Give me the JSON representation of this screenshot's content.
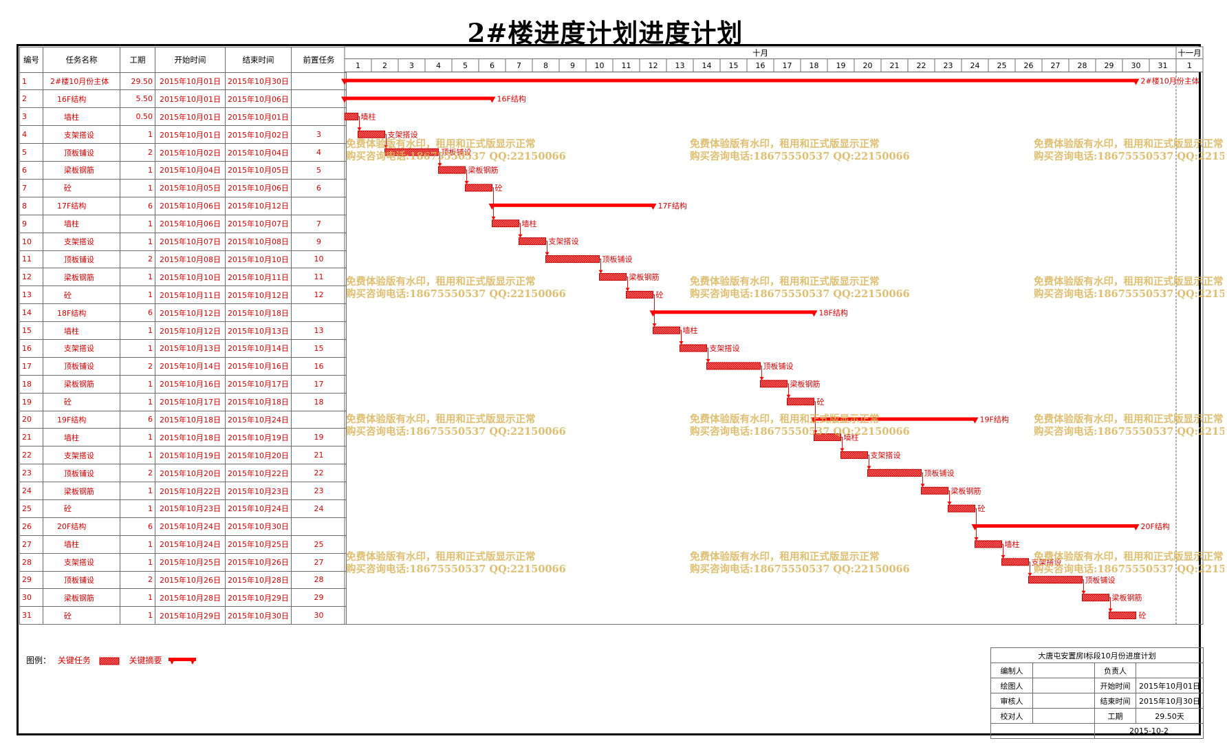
{
  "title": "2#楼进度计划进度计划",
  "columns": [
    "编号",
    "任务名称",
    "工期",
    "开始时间",
    "结束时间",
    "前置任务"
  ],
  "tasks": [
    {
      "id": "1",
      "name": "2#楼10月份主体",
      "level": 0,
      "duration": "29.50",
      "start": "2015年10月01日",
      "end": "2015年10月30日",
      "pred": "",
      "s": 0,
      "e": 29.5,
      "summary": true
    },
    {
      "id": "2",
      "name": "16F结构",
      "level": 1,
      "duration": "5.50",
      "start": "2015年10月01日",
      "end": "2015年10月06日",
      "pred": "",
      "s": 0,
      "e": 5.5,
      "summary": true
    },
    {
      "id": "3",
      "name": "墙柱",
      "level": 2,
      "duration": "0.50",
      "start": "2015年10月01日",
      "end": "2015年10月01日",
      "pred": "",
      "s": 0,
      "e": 0.5,
      "summary": false
    },
    {
      "id": "4",
      "name": "支架搭设",
      "level": 2,
      "duration": "1",
      "start": "2015年10月01日",
      "end": "2015年10月02日",
      "pred": "3",
      "s": 0.5,
      "e": 1.5,
      "summary": false
    },
    {
      "id": "5",
      "name": "顶板铺设",
      "level": 2,
      "duration": "2",
      "start": "2015年10月02日",
      "end": "2015年10月04日",
      "pred": "4",
      "s": 1.5,
      "e": 3.5,
      "summary": false
    },
    {
      "id": "6",
      "name": "梁板钢筋",
      "level": 2,
      "duration": "1",
      "start": "2015年10月04日",
      "end": "2015年10月05日",
      "pred": "5",
      "s": 3.5,
      "e": 4.5,
      "summary": false
    },
    {
      "id": "7",
      "name": "砼",
      "level": 2,
      "duration": "1",
      "start": "2015年10月05日",
      "end": "2015年10月06日",
      "pred": "6",
      "s": 4.5,
      "e": 5.5,
      "summary": false
    },
    {
      "id": "8",
      "name": "17F结构",
      "level": 1,
      "duration": "6",
      "start": "2015年10月06日",
      "end": "2015年10月12日",
      "pred": "",
      "s": 5.5,
      "e": 11.5,
      "summary": true
    },
    {
      "id": "9",
      "name": "墙柱",
      "level": 2,
      "duration": "1",
      "start": "2015年10月06日",
      "end": "2015年10月07日",
      "pred": "7",
      "s": 5.5,
      "e": 6.5,
      "summary": false
    },
    {
      "id": "10",
      "name": "支架搭设",
      "level": 2,
      "duration": "1",
      "start": "2015年10月07日",
      "end": "2015年10月08日",
      "pred": "9",
      "s": 6.5,
      "e": 7.5,
      "summary": false
    },
    {
      "id": "11",
      "name": "顶板铺设",
      "level": 2,
      "duration": "2",
      "start": "2015年10月08日",
      "end": "2015年10月10日",
      "pred": "10",
      "s": 7.5,
      "e": 9.5,
      "summary": false
    },
    {
      "id": "12",
      "name": "梁板钢筋",
      "level": 2,
      "duration": "1",
      "start": "2015年10月10日",
      "end": "2015年10月11日",
      "pred": "11",
      "s": 9.5,
      "e": 10.5,
      "summary": false
    },
    {
      "id": "13",
      "name": "砼",
      "level": 2,
      "duration": "1",
      "start": "2015年10月11日",
      "end": "2015年10月12日",
      "pred": "12",
      "s": 10.5,
      "e": 11.5,
      "summary": false
    },
    {
      "id": "14",
      "name": "18F结构",
      "level": 1,
      "duration": "6",
      "start": "2015年10月12日",
      "end": "2015年10月18日",
      "pred": "",
      "s": 11.5,
      "e": 17.5,
      "summary": true
    },
    {
      "id": "15",
      "name": "墙柱",
      "level": 2,
      "duration": "1",
      "start": "2015年10月12日",
      "end": "2015年10月13日",
      "pred": "13",
      "s": 11.5,
      "e": 12.5,
      "summary": false
    },
    {
      "id": "16",
      "name": "支架搭设",
      "level": 2,
      "duration": "1",
      "start": "2015年10月13日",
      "end": "2015年10月14日",
      "pred": "15",
      "s": 12.5,
      "e": 13.5,
      "summary": false
    },
    {
      "id": "17",
      "name": "顶板铺设",
      "level": 2,
      "duration": "2",
      "start": "2015年10月14日",
      "end": "2015年10月16日",
      "pred": "16",
      "s": 13.5,
      "e": 15.5,
      "summary": false
    },
    {
      "id": "18",
      "name": "梁板钢筋",
      "level": 2,
      "duration": "1",
      "start": "2015年10月16日",
      "end": "2015年10月17日",
      "pred": "17",
      "s": 15.5,
      "e": 16.5,
      "summary": false
    },
    {
      "id": "19",
      "name": "砼",
      "level": 2,
      "duration": "1",
      "start": "2015年10月17日",
      "end": "2015年10月18日",
      "pred": "18",
      "s": 16.5,
      "e": 17.5,
      "summary": false
    },
    {
      "id": "20",
      "name": "19F结构",
      "level": 1,
      "duration": "6",
      "start": "2015年10月18日",
      "end": "2015年10月24日",
      "pred": "",
      "s": 17.5,
      "e": 23.5,
      "summary": true
    },
    {
      "id": "21",
      "name": "墙柱",
      "level": 2,
      "duration": "1",
      "start": "2015年10月18日",
      "end": "2015年10月19日",
      "pred": "19",
      "s": 17.5,
      "e": 18.5,
      "summary": false
    },
    {
      "id": "22",
      "name": "支架搭设",
      "level": 2,
      "duration": "1",
      "start": "2015年10月19日",
      "end": "2015年10月20日",
      "pred": "21",
      "s": 18.5,
      "e": 19.5,
      "summary": false
    },
    {
      "id": "23",
      "name": "顶板铺设",
      "level": 2,
      "duration": "2",
      "start": "2015年10月20日",
      "end": "2015年10月22日",
      "pred": "22",
      "s": 19.5,
      "e": 21.5,
      "summary": false
    },
    {
      "id": "24",
      "name": "梁板钢筋",
      "level": 2,
      "duration": "1",
      "start": "2015年10月22日",
      "end": "2015年10月23日",
      "pred": "23",
      "s": 21.5,
      "e": 22.5,
      "summary": false
    },
    {
      "id": "25",
      "name": "砼",
      "level": 2,
      "duration": "1",
      "start": "2015年10月23日",
      "end": "2015年10月24日",
      "pred": "24",
      "s": 22.5,
      "e": 23.5,
      "summary": false
    },
    {
      "id": "26",
      "name": "20F结构",
      "level": 1,
      "duration": "6",
      "start": "2015年10月24日",
      "end": "2015年10月30日",
      "pred": "",
      "s": 23.5,
      "e": 29.5,
      "summary": true
    },
    {
      "id": "27",
      "name": "墙柱",
      "level": 2,
      "duration": "1",
      "start": "2015年10月24日",
      "end": "2015年10月25日",
      "pred": "25",
      "s": 23.5,
      "e": 24.5,
      "summary": false
    },
    {
      "id": "28",
      "name": "支架搭设",
      "level": 2,
      "duration": "1",
      "start": "2015年10月25日",
      "end": "2015年10月26日",
      "pred": "27",
      "s": 24.5,
      "e": 25.5,
      "summary": false
    },
    {
      "id": "29",
      "name": "顶板铺设",
      "level": 2,
      "duration": "2",
      "start": "2015年10月26日",
      "end": "2015年10月28日",
      "pred": "28",
      "s": 25.5,
      "e": 27.5,
      "summary": false
    },
    {
      "id": "30",
      "name": "梁板钢筋",
      "level": 2,
      "duration": "1",
      "start": "2015年10月28日",
      "end": "2015年10月29日",
      "pred": "29",
      "s": 27.5,
      "e": 28.5,
      "summary": false
    },
    {
      "id": "31",
      "name": "砼",
      "level": 2,
      "duration": "1",
      "start": "2015年10月29日",
      "end": "2015年10月30日",
      "pred": "30",
      "s": 28.5,
      "e": 29.5,
      "summary": false
    }
  ],
  "timescale": {
    "months": [
      "十月",
      "十一月"
    ],
    "days": [
      "1",
      "2",
      "3",
      "4",
      "5",
      "6",
      "7",
      "8",
      "9",
      "10",
      "11",
      "12",
      "13",
      "14",
      "15",
      "16",
      "17",
      "18",
      "19",
      "20",
      "21",
      "22",
      "23",
      "24",
      "25",
      "26",
      "27",
      "28",
      "29",
      "30",
      "31",
      "1"
    ]
  },
  "watermark": {
    "line1": "免费体验版有水印，租用和正式版显示正常",
    "line2": "购买咨询电话:18675550537 QQ:22150066"
  },
  "legend": {
    "prefix": "图例：",
    "critical_task": "关键任务",
    "critical_summary": "关键摘要"
  },
  "infobox": {
    "project": "大唐屯安置房Ⅰ标段10月份进度计划",
    "editor_label": "编制人",
    "editor": "",
    "owner_label": "负责人",
    "owner": "",
    "drawer_label": "绘图人",
    "drawer": "",
    "start_label": "开始时间",
    "start": "2015年10月01日",
    "reviewer_label": "审核人",
    "reviewer": "",
    "end_label": "结束时间",
    "end": "2015年10月30日",
    "checker_label": "校对人",
    "checker": "",
    "duration_label": "工期",
    "duration": "29.50天",
    "date": "2015-10-2"
  },
  "colors": {
    "task_red": "#ff0000",
    "text_red": "#d40000",
    "watermark": "#d9b45a"
  }
}
